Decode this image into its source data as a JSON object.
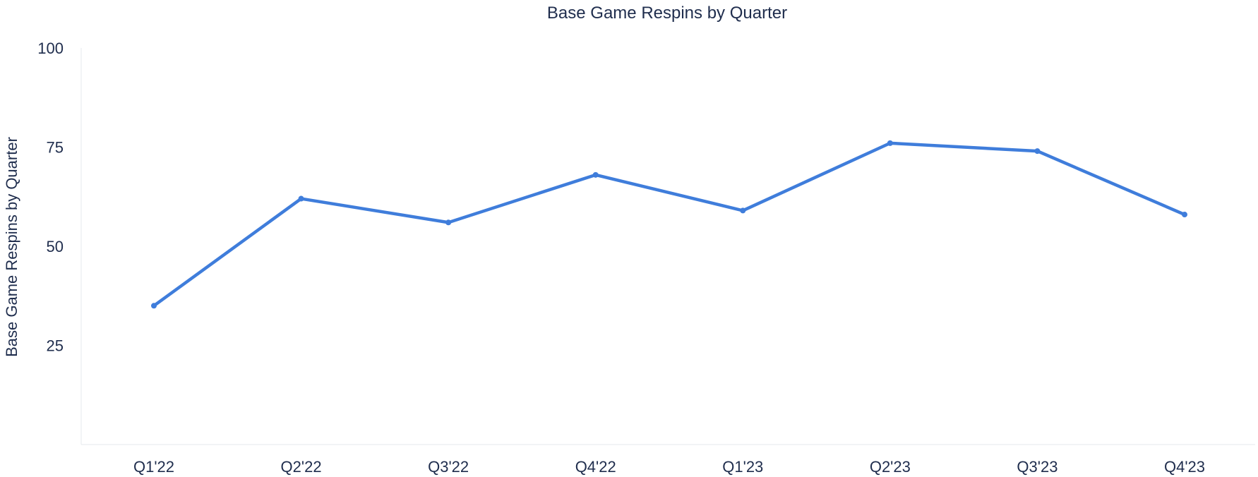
{
  "chart_data": {
    "type": "line",
    "title": "Base Game Respins by Quarter",
    "xlabel": "",
    "ylabel": "Base Game Respins by Quarter",
    "categories": [
      "Q1'22",
      "Q2'22",
      "Q3'22",
      "Q4'22",
      "Q1'23",
      "Q2'23",
      "Q3'23",
      "Q4'23"
    ],
    "series": [
      {
        "values": [
          35,
          62,
          56,
          68,
          59,
          76,
          74,
          58
        ],
        "color": "#3f7ddb"
      }
    ],
    "ylim": [
      0,
      100
    ],
    "yticks": [
      25,
      50,
      75,
      100
    ],
    "grid": false,
    "legend": "none"
  }
}
